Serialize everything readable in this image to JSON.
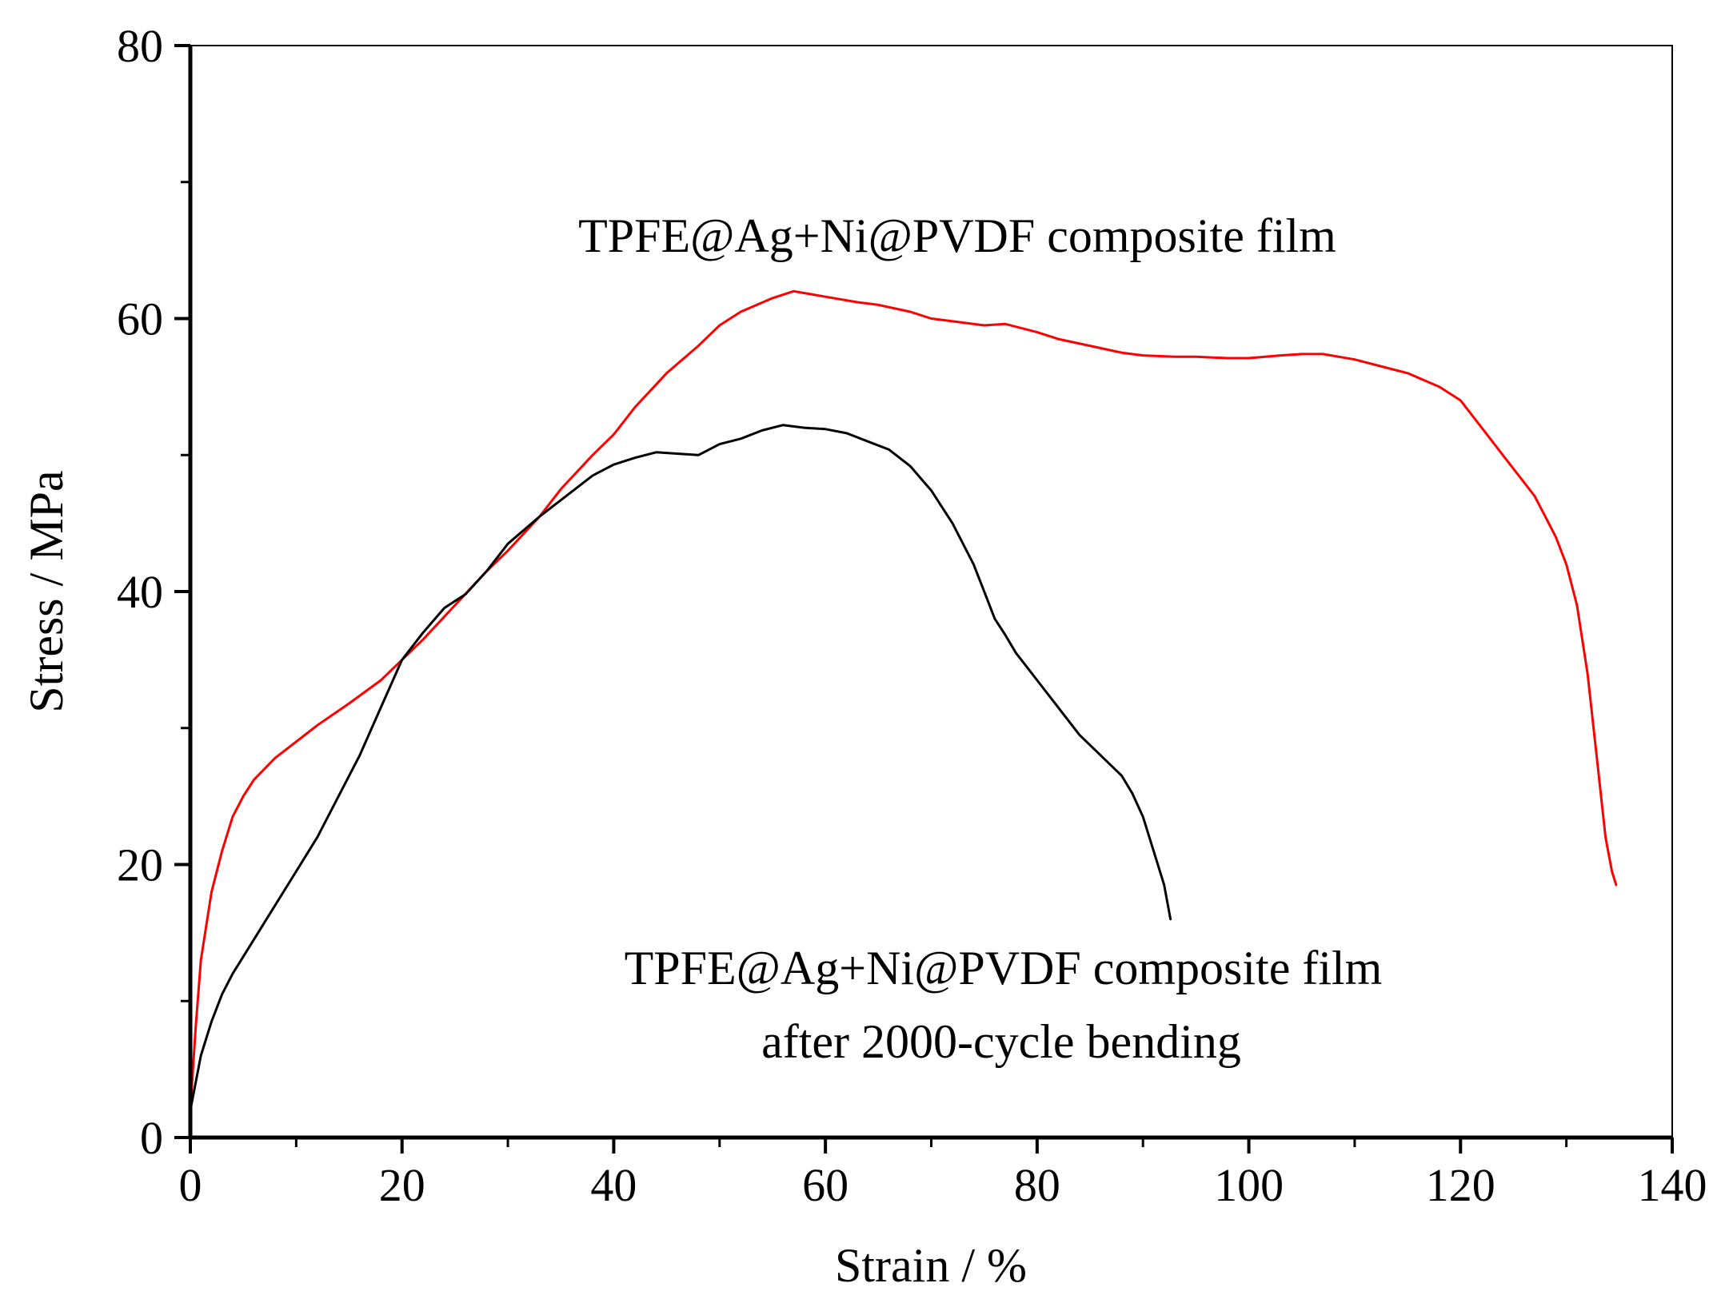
{
  "chart_data": {
    "type": "line",
    "title": "",
    "xlabel": "Strain / %",
    "ylabel": "Stress / MPa",
    "xlim": [
      0,
      140
    ],
    "ylim": [
      0,
      80
    ],
    "xticks": [
      0,
      20,
      40,
      60,
      80,
      100,
      120,
      140
    ],
    "yticks": [
      0,
      20,
      40,
      60,
      80
    ],
    "x_minor_step": 10,
    "y_minor_step": 10,
    "grid": false,
    "series": [
      {
        "name": "TPFE@Ag+Ni@PVDF composite film",
        "color": "#ff0000",
        "x": [
          0,
          0.5,
          1,
          2,
          3,
          4,
          5,
          6,
          7,
          8,
          10,
          12,
          15,
          18,
          20,
          22,
          25,
          28,
          30,
          33,
          35,
          38,
          40,
          42,
          45,
          48,
          50,
          52,
          55,
          57,
          60,
          63,
          65,
          68,
          70,
          72,
          75,
          77,
          80,
          82,
          85,
          88,
          90,
          93,
          95,
          98,
          100,
          103,
          105,
          107,
          110,
          113,
          115,
          118,
          120,
          122,
          124,
          126,
          127,
          128,
          129,
          130,
          131,
          132,
          133,
          133.7,
          134.3,
          134.7
        ],
        "y": [
          2,
          8,
          13,
          18,
          21,
          23.5,
          25,
          26.2,
          27,
          27.8,
          29,
          30.2,
          31.8,
          33.5,
          35,
          36.5,
          39,
          41.5,
          43,
          45.5,
          47.5,
          50,
          51.5,
          53.5,
          56,
          58,
          59.5,
          60.5,
          61.5,
          62,
          61.6,
          61.2,
          61,
          60.5,
          60,
          59.8,
          59.5,
          59.6,
          59,
          58.5,
          58,
          57.5,
          57.3,
          57.2,
          57.2,
          57.1,
          57.1,
          57.3,
          57.4,
          57.4,
          57,
          56.4,
          56,
          55,
          54,
          52,
          50,
          48,
          47,
          45.5,
          44,
          42,
          39,
          34,
          27,
          22,
          19.5,
          18.5
        ]
      },
      {
        "name": "TPFE@Ag+Ni@PVDF composite film after 2000-cycle bending",
        "color": "#000000",
        "x": [
          0,
          0.5,
          1,
          2,
          3,
          4,
          6,
          8,
          10,
          12,
          14,
          16,
          18,
          20,
          22,
          24,
          26,
          28,
          30,
          33,
          36,
          38,
          40,
          42,
          44,
          46,
          48,
          50,
          52,
          54,
          56,
          58,
          60,
          62,
          64,
          66,
          68,
          70,
          72,
          74,
          75,
          76,
          77,
          78,
          80,
          82,
          84,
          86,
          88,
          89,
          90,
          91,
          92,
          92.6
        ],
        "y": [
          2,
          4,
          6,
          8.5,
          10.5,
          12,
          14.5,
          17,
          19.5,
          22,
          25,
          28,
          31.5,
          35,
          37,
          38.8,
          39.8,
          41.5,
          43.5,
          45.5,
          47.3,
          48.5,
          49.3,
          49.8,
          50.2,
          50.1,
          50,
          50.8,
          51.2,
          51.8,
          52.2,
          52,
          51.9,
          51.6,
          51,
          50.4,
          49.2,
          47.4,
          45,
          42,
          40,
          38,
          36.8,
          35.5,
          33.5,
          31.5,
          29.5,
          28,
          26.5,
          25.2,
          23.5,
          21,
          18.5,
          16
        ]
      }
    ],
    "annotations": [
      {
        "lines": [
          "TPFE@Ag+Ni@PVDF composite film"
        ],
        "series": 0
      },
      {
        "lines": [
          "TPFE@Ag+Ni@PVDF composite film",
          "after 2000-cycle bending"
        ],
        "series": 1
      }
    ]
  }
}
